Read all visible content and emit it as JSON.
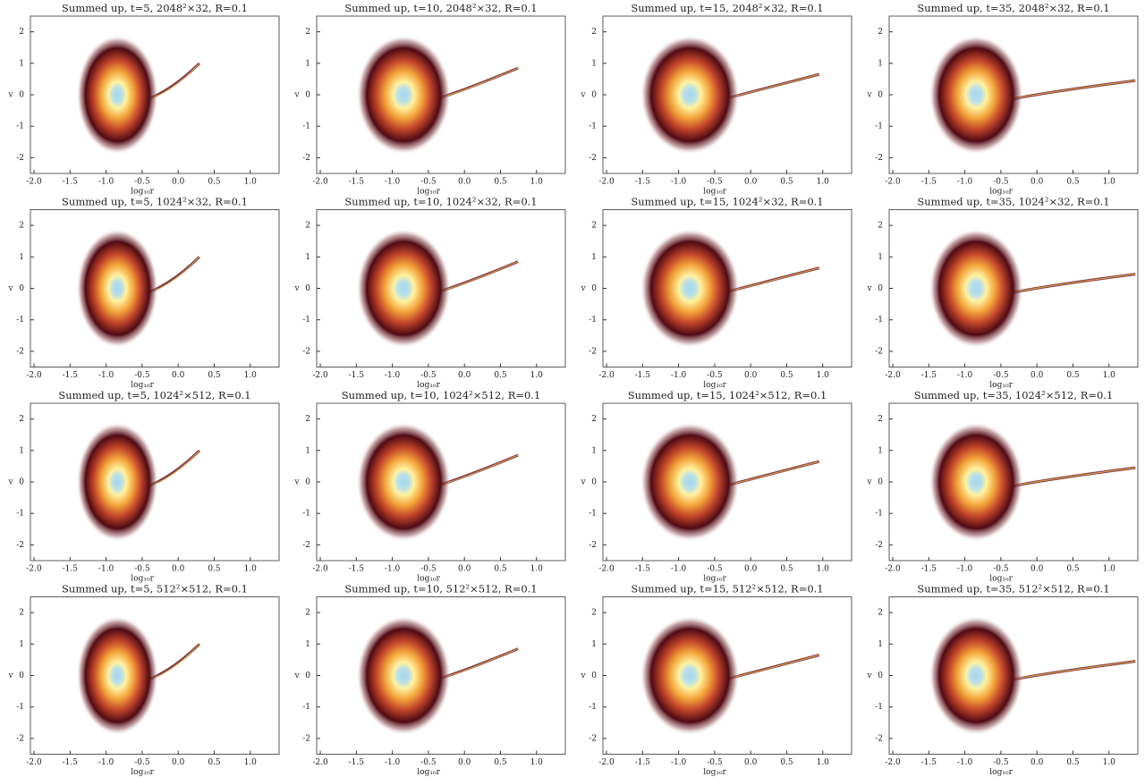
{
  "chart_data": [
    {
      "type": "density",
      "title": "Summed up, t=5, 2048²×32, R=0.1",
      "xlabel": "log₁₀r",
      "ylabel": "v",
      "xlim": [
        -2.05,
        1.4
      ],
      "ylim": [
        -2.5,
        2.5
      ],
      "xticks": [
        {
          "value": -2,
          "label": "-2.0"
        },
        -1.5,
        {
          "value": -1,
          "label": "-1.0"
        },
        -0.5,
        {
          "value": 0,
          "label": "0.0"
        },
        0.5,
        {
          "value": 1,
          "label": "1.0"
        }
      ],
      "yticks": [
        -2,
        -1,
        0,
        1,
        2
      ]
    },
    {
      "type": "density",
      "title": "Summed up, t=10, 2048²×32, R=0.1",
      "xlabel": "log₁₀r",
      "ylabel": "v",
      "xlim": [
        -2.05,
        1.4
      ],
      "ylim": [
        -2.5,
        2.5
      ],
      "xticks": [
        {
          "value": -2,
          "label": "-2.0"
        },
        -1.5,
        {
          "value": -1,
          "label": "-1.0"
        },
        -0.5,
        {
          "value": 0,
          "label": "0.0"
        },
        0.5,
        {
          "value": 1,
          "label": "1.0"
        }
      ],
      "yticks": [
        -2,
        -1,
        0,
        1,
        2
      ]
    },
    {
      "type": "density",
      "title": "Summed up, t=15, 2048²×32, R=0.1",
      "xlabel": "log₁₀r",
      "ylabel": "v",
      "xlim": [
        -2.05,
        1.4
      ],
      "ylim": [
        -2.5,
        2.5
      ],
      "xticks": [
        {
          "value": -2,
          "label": "-2.0"
        },
        -1.5,
        {
          "value": -1,
          "label": "-1.0"
        },
        -0.5,
        {
          "value": 0,
          "label": "0.0"
        },
        0.5,
        {
          "value": 1,
          "label": "1.0"
        }
      ],
      "yticks": [
        -2,
        -1,
        0,
        1,
        2
      ]
    },
    {
      "type": "density",
      "title": "Summed up, t=35, 2048²×32, R=0.1",
      "xlabel": "log₁₀r",
      "ylabel": "v",
      "xlim": [
        -2.05,
        1.4
      ],
      "ylim": [
        -2.5,
        2.5
      ],
      "xticks": [
        {
          "value": -2,
          "label": "-2.0"
        },
        -1.5,
        {
          "value": -1,
          "label": "-1.0"
        },
        -0.5,
        {
          "value": 0,
          "label": "0.0"
        },
        0.5,
        {
          "value": 1,
          "label": "1.0"
        }
      ],
      "yticks": [
        -2,
        -1,
        0,
        1,
        2
      ]
    },
    {
      "type": "density",
      "title": "Summed up, t=5, 1024²×32, R=0.1",
      "xlabel": "log₁₀r",
      "ylabel": "v",
      "xlim": [
        -2.05,
        1.4
      ],
      "ylim": [
        -2.5,
        2.5
      ],
      "xticks": [
        {
          "value": -2,
          "label": "-2.0"
        },
        -1.5,
        {
          "value": -1,
          "label": "-1.0"
        },
        -0.5,
        {
          "value": 0,
          "label": "0.0"
        },
        0.5,
        {
          "value": 1,
          "label": "1.0"
        }
      ],
      "yticks": [
        -2,
        -1,
        0,
        1,
        2
      ]
    },
    {
      "type": "density",
      "title": "Summed up, t=10, 1024²×32, R=0.1",
      "xlabel": "log₁₀r",
      "ylabel": "v",
      "xlim": [
        -2.05,
        1.4
      ],
      "ylim": [
        -2.5,
        2.5
      ],
      "xticks": [
        {
          "value": -2,
          "label": "-2.0"
        },
        -1.5,
        {
          "value": -1,
          "label": "-1.0"
        },
        -0.5,
        {
          "value": 0,
          "label": "0.0"
        },
        0.5,
        {
          "value": 1,
          "label": "1.0"
        }
      ],
      "yticks": [
        -2,
        -1,
        0,
        1,
        2
      ]
    },
    {
      "type": "density",
      "title": "Summed up, t=15, 1024²×32, R=0.1",
      "xlabel": "log₁₀r",
      "ylabel": "v",
      "xlim": [
        -2.05,
        1.4
      ],
      "ylim": [
        -2.5,
        2.5
      ],
      "xticks": [
        {
          "value": -2,
          "label": "-2.0"
        },
        -1.5,
        {
          "value": -1,
          "label": "-1.0"
        },
        -0.5,
        {
          "value": 0,
          "label": "0.0"
        },
        0.5,
        {
          "value": 1,
          "label": "1.0"
        }
      ],
      "yticks": [
        -2,
        -1,
        0,
        1,
        2
      ]
    },
    {
      "type": "density",
      "title": "Summed up, t=35, 1024²×32, R=0.1",
      "xlabel": "log₁₀r",
      "ylabel": "v",
      "xlim": [
        -2.05,
        1.4
      ],
      "ylim": [
        -2.5,
        2.5
      ],
      "xticks": [
        {
          "value": -2,
          "label": "-2.0"
        },
        -1.5,
        {
          "value": -1,
          "label": "-1.0"
        },
        -0.5,
        {
          "value": 0,
          "label": "0.0"
        },
        0.5,
        {
          "value": 1,
          "label": "1.0"
        }
      ],
      "yticks": [
        -2,
        -1,
        0,
        1,
        2
      ]
    },
    {
      "type": "density",
      "title": "Summed up, t=5, 1024²×512, R=0.1",
      "xlabel": "log₁₀r",
      "ylabel": "v",
      "xlim": [
        -2.05,
        1.4
      ],
      "ylim": [
        -2.5,
        2.5
      ],
      "xticks": [
        {
          "value": -2,
          "label": "-2.0"
        },
        -1.5,
        {
          "value": -1,
          "label": "-1.0"
        },
        -0.5,
        {
          "value": 0,
          "label": "0.0"
        },
        0.5,
        {
          "value": 1,
          "label": "1.0"
        }
      ],
      "yticks": [
        -2,
        -1,
        0,
        1,
        2
      ]
    },
    {
      "type": "density",
      "title": "Summed up, t=10, 1024²×512, R=0.1",
      "xlabel": "log₁₀r",
      "ylabel": "v",
      "xlim": [
        -2.05,
        1.4
      ],
      "ylim": [
        -2.5,
        2.5
      ],
      "xticks": [
        {
          "value": -2,
          "label": "-2.0"
        },
        -1.5,
        {
          "value": -1,
          "label": "-1.0"
        },
        -0.5,
        {
          "value": 0,
          "label": "0.0"
        },
        0.5,
        {
          "value": 1,
          "label": "1.0"
        }
      ],
      "yticks": [
        -2,
        -1,
        0,
        1,
        2
      ]
    },
    {
      "type": "density",
      "title": "Summed up, t=15, 1024²×512, R=0.1",
      "xlabel": "log₁₀r",
      "ylabel": "v",
      "xlim": [
        -2.05,
        1.4
      ],
      "ylim": [
        -2.5,
        2.5
      ],
      "xticks": [
        {
          "value": -2,
          "label": "-2.0"
        },
        -1.5,
        {
          "value": -1,
          "label": "-1.0"
        },
        -0.5,
        {
          "value": 0,
          "label": "0.0"
        },
        0.5,
        {
          "value": 1,
          "label": "1.0"
        }
      ],
      "yticks": [
        -2,
        -1,
        0,
        1,
        2
      ]
    },
    {
      "type": "density",
      "title": "Summed up, t=35, 1024²×512, R=0.1",
      "xlabel": "log₁₀r",
      "ylabel": "v",
      "xlim": [
        -2.05,
        1.4
      ],
      "ylim": [
        -2.5,
        2.5
      ],
      "xticks": [
        {
          "value": -2,
          "label": "-2.0"
        },
        -1.5,
        {
          "value": -1,
          "label": "-1.0"
        },
        -0.5,
        {
          "value": 0,
          "label": "0.0"
        },
        0.5,
        {
          "value": 1,
          "label": "1.0"
        }
      ],
      "yticks": [
        -2,
        -1,
        0,
        1,
        2
      ]
    },
    {
      "type": "density",
      "title": "Summed up, t=5, 512²×512, R=0.1",
      "xlabel": "log₁₀r",
      "ylabel": "v",
      "xlim": [
        -2.05,
        1.4
      ],
      "ylim": [
        -2.5,
        2.5
      ],
      "xticks": [
        {
          "value": -2,
          "label": "-2.0"
        },
        -1.5,
        {
          "value": -1,
          "label": "-1.0"
        },
        -0.5,
        {
          "value": 0,
          "label": "0.0"
        },
        0.5,
        {
          "value": 1,
          "label": "1.0"
        }
      ],
      "yticks": [
        -2,
        -1,
        0,
        1,
        2
      ]
    },
    {
      "type": "density",
      "title": "Summed up, t=10, 512²×512, R=0.1",
      "xlabel": "log₁₀r",
      "ylabel": "v",
      "xlim": [
        -2.05,
        1.4
      ],
      "ylim": [
        -2.5,
        2.5
      ],
      "xticks": [
        {
          "value": -2,
          "label": "-2.0"
        },
        -1.5,
        {
          "value": -1,
          "label": "-1.0"
        },
        -0.5,
        {
          "value": 0,
          "label": "0.0"
        },
        0.5,
        {
          "value": 1,
          "label": "1.0"
        }
      ],
      "yticks": [
        -2,
        -1,
        0,
        1,
        2
      ]
    },
    {
      "type": "density",
      "title": "Summed up, t=15, 512²×512, R=0.1",
      "xlabel": "log₁₀r",
      "ylabel": "v",
      "xlim": [
        -2.05,
        1.4
      ],
      "ylim": [
        -2.5,
        2.5
      ],
      "xticks": [
        {
          "value": -2,
          "label": "-2.0"
        },
        -1.5,
        {
          "value": -1,
          "label": "-1.0"
        },
        -0.5,
        {
          "value": 0,
          "label": "0.0"
        },
        0.5,
        {
          "value": 1,
          "label": "1.0"
        }
      ],
      "yticks": [
        -2,
        -1,
        0,
        1,
        2
      ]
    },
    {
      "type": "density",
      "title": "Summed up, t=35, 512²×512, R=0.1",
      "xlabel": "log₁₀r",
      "ylabel": "v",
      "xlim": [
        -2.05,
        1.4
      ],
      "ylim": [
        -2.5,
        2.5
      ],
      "xticks": [
        {
          "value": -2,
          "label": "-2.0"
        },
        -1.5,
        {
          "value": -1,
          "label": "-1.0"
        },
        -0.5,
        {
          "value": 0,
          "label": "0.0"
        },
        0.5,
        {
          "value": 1,
          "label": "1.0"
        }
      ],
      "yticks": [
        -2,
        -1,
        0,
        1,
        2
      ]
    }
  ]
}
